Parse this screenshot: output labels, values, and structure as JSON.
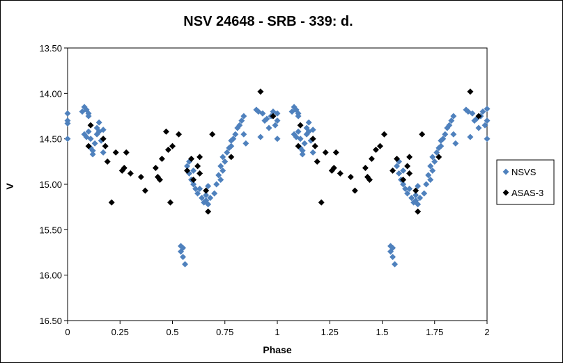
{
  "chart_data": {
    "type": "scatter",
    "title": "NSV 24648 - SRB - 339: d.",
    "xlabel": "Phase",
    "ylabel": "V",
    "xlim": [
      0,
      2
    ],
    "ylim": [
      13.5,
      16.5
    ],
    "y_reversed": true,
    "x_ticks": [
      "0",
      "0.25",
      "0.5",
      "0.75",
      "1",
      "1.25",
      "1.5",
      "1.75",
      "2"
    ],
    "x_tick_values": [
      0,
      0.25,
      0.5,
      0.75,
      1,
      1.25,
      1.5,
      1.75,
      2
    ],
    "y_ticks": [
      "13.50",
      "14.00",
      "14.50",
      "15.00",
      "15.50",
      "16.00",
      "16.50"
    ],
    "y_tick_values": [
      13.5,
      14.0,
      14.5,
      15.0,
      15.5,
      16.0,
      16.5
    ],
    "grid": false,
    "legend_position": "right",
    "series": [
      {
        "name": "NSVS",
        "color": "#4F81BD",
        "marker": "diamond",
        "points": [
          [
            0.0,
            14.22
          ],
          [
            0.0,
            14.33
          ],
          [
            0.0,
            14.3
          ],
          [
            0.0,
            14.5
          ],
          [
            0.07,
            14.2
          ],
          [
            0.08,
            14.15
          ],
          [
            0.09,
            14.18
          ],
          [
            0.1,
            14.22
          ],
          [
            0.1,
            14.25
          ],
          [
            0.08,
            14.45
          ],
          [
            0.09,
            14.48
          ],
          [
            0.1,
            14.42
          ],
          [
            0.11,
            14.5
          ],
          [
            0.11,
            14.6
          ],
          [
            0.12,
            14.63
          ],
          [
            0.12,
            14.67
          ],
          [
            0.13,
            14.55
          ],
          [
            0.14,
            14.45
          ],
          [
            0.14,
            14.38
          ],
          [
            0.15,
            14.32
          ],
          [
            0.15,
            14.42
          ],
          [
            0.16,
            14.52
          ],
          [
            0.17,
            14.4
          ],
          [
            0.17,
            14.65
          ],
          [
            0.54,
            15.68
          ],
          [
            0.54,
            15.74
          ],
          [
            0.55,
            15.8
          ],
          [
            0.56,
            15.88
          ],
          [
            0.55,
            15.7
          ],
          [
            0.57,
            14.8
          ],
          [
            0.58,
            14.75
          ],
          [
            0.58,
            14.88
          ],
          [
            0.59,
            14.95
          ],
          [
            0.6,
            15.0
          ],
          [
            0.6,
            14.85
          ],
          [
            0.61,
            15.05
          ],
          [
            0.62,
            15.1
          ],
          [
            0.63,
            15.05
          ],
          [
            0.64,
            15.15
          ],
          [
            0.65,
            15.2
          ],
          [
            0.66,
            15.12
          ],
          [
            0.66,
            15.18
          ],
          [
            0.67,
            15.02
          ],
          [
            0.67,
            15.22
          ],
          [
            0.68,
            15.15
          ],
          [
            0.7,
            15.1
          ],
          [
            0.71,
            15.0
          ],
          [
            0.72,
            14.9
          ],
          [
            0.73,
            14.8
          ],
          [
            0.73,
            14.95
          ],
          [
            0.74,
            14.7
          ],
          [
            0.74,
            14.85
          ],
          [
            0.75,
            14.75
          ],
          [
            0.76,
            14.65
          ],
          [
            0.77,
            14.6
          ],
          [
            0.78,
            14.58
          ],
          [
            0.78,
            14.52
          ],
          [
            0.79,
            14.5
          ],
          [
            0.8,
            14.45
          ],
          [
            0.81,
            14.38
          ],
          [
            0.82,
            14.35
          ],
          [
            0.83,
            14.3
          ],
          [
            0.84,
            14.25
          ],
          [
            0.84,
            14.45
          ],
          [
            0.85,
            14.55
          ],
          [
            0.9,
            14.18
          ],
          [
            0.91,
            14.2
          ],
          [
            0.92,
            14.48
          ],
          [
            0.93,
            14.22
          ],
          [
            0.94,
            14.3
          ],
          [
            0.95,
            14.28
          ],
          [
            0.96,
            14.38
          ],
          [
            0.97,
            14.25
          ],
          [
            0.98,
            14.2
          ],
          [
            0.99,
            14.35
          ],
          [
            1.0,
            14.3
          ],
          [
            1.0,
            14.5
          ],
          [
            1.0,
            14.22
          ],
          [
            1.07,
            14.2
          ],
          [
            1.08,
            14.15
          ],
          [
            1.09,
            14.18
          ],
          [
            1.1,
            14.22
          ],
          [
            1.1,
            14.25
          ],
          [
            1.08,
            14.45
          ],
          [
            1.09,
            14.48
          ],
          [
            1.1,
            14.42
          ],
          [
            1.11,
            14.5
          ],
          [
            1.11,
            14.6
          ],
          [
            1.12,
            14.63
          ],
          [
            1.12,
            14.67
          ],
          [
            1.13,
            14.55
          ],
          [
            1.14,
            14.45
          ],
          [
            1.14,
            14.38
          ],
          [
            1.15,
            14.32
          ],
          [
            1.15,
            14.42
          ],
          [
            1.16,
            14.52
          ],
          [
            1.17,
            14.4
          ],
          [
            1.17,
            14.65
          ],
          [
            1.54,
            15.68
          ],
          [
            1.54,
            15.74
          ],
          [
            1.55,
            15.8
          ],
          [
            1.56,
            15.88
          ],
          [
            1.55,
            15.7
          ],
          [
            1.57,
            14.8
          ],
          [
            1.58,
            14.75
          ],
          [
            1.58,
            14.88
          ],
          [
            1.59,
            14.95
          ],
          [
            1.6,
            15.0
          ],
          [
            1.6,
            14.85
          ],
          [
            1.61,
            15.05
          ],
          [
            1.62,
            15.1
          ],
          [
            1.63,
            15.05
          ],
          [
            1.64,
            15.15
          ],
          [
            1.65,
            15.2
          ],
          [
            1.66,
            15.12
          ],
          [
            1.66,
            15.18
          ],
          [
            1.67,
            15.02
          ],
          [
            1.67,
            15.22
          ],
          [
            1.68,
            15.15
          ],
          [
            1.7,
            15.1
          ],
          [
            1.71,
            15.0
          ],
          [
            1.72,
            14.9
          ],
          [
            1.73,
            14.8
          ],
          [
            1.73,
            14.95
          ],
          [
            1.74,
            14.7
          ],
          [
            1.74,
            14.85
          ],
          [
            1.75,
            14.75
          ],
          [
            1.76,
            14.65
          ],
          [
            1.77,
            14.6
          ],
          [
            1.78,
            14.58
          ],
          [
            1.78,
            14.52
          ],
          [
            1.79,
            14.5
          ],
          [
            1.8,
            14.45
          ],
          [
            1.81,
            14.38
          ],
          [
            1.82,
            14.35
          ],
          [
            1.83,
            14.3
          ],
          [
            1.84,
            14.25
          ],
          [
            1.84,
            14.45
          ],
          [
            1.85,
            14.55
          ],
          [
            1.9,
            14.18
          ],
          [
            1.91,
            14.2
          ],
          [
            1.92,
            14.48
          ],
          [
            1.93,
            14.22
          ],
          [
            1.94,
            14.3
          ],
          [
            1.95,
            14.28
          ],
          [
            1.96,
            14.38
          ],
          [
            1.97,
            14.25
          ],
          [
            1.98,
            14.2
          ],
          [
            1.99,
            14.35
          ],
          [
            2.0,
            14.3
          ],
          [
            2.0,
            14.5
          ],
          [
            2.0,
            14.17
          ]
        ]
      },
      {
        "name": "ASAS-3",
        "color": "#000000",
        "marker": "diamond",
        "points": [
          [
            0.1,
            14.58
          ],
          [
            0.11,
            14.35
          ],
          [
            0.17,
            14.5
          ],
          [
            0.18,
            14.58
          ],
          [
            0.19,
            14.75
          ],
          [
            0.21,
            15.2
          ],
          [
            0.23,
            14.65
          ],
          [
            0.26,
            14.85
          ],
          [
            0.27,
            14.82
          ],
          [
            0.28,
            14.65
          ],
          [
            0.3,
            14.88
          ],
          [
            0.35,
            14.92
          ],
          [
            0.37,
            15.07
          ],
          [
            0.42,
            14.82
          ],
          [
            0.43,
            14.92
          ],
          [
            0.44,
            14.95
          ],
          [
            0.45,
            14.72
          ],
          [
            0.47,
            14.42
          ],
          [
            0.48,
            14.62
          ],
          [
            0.49,
            15.2
          ],
          [
            0.5,
            14.58
          ],
          [
            0.53,
            14.45
          ],
          [
            0.57,
            14.85
          ],
          [
            0.59,
            14.72
          ],
          [
            0.6,
            14.95
          ],
          [
            0.62,
            14.8
          ],
          [
            0.63,
            14.88
          ],
          [
            0.63,
            14.7
          ],
          [
            0.66,
            15.07
          ],
          [
            0.67,
            15.3
          ],
          [
            0.69,
            14.45
          ],
          [
            0.78,
            14.7
          ],
          [
            0.92,
            13.98
          ],
          [
            0.98,
            14.25
          ],
          [
            1.1,
            14.58
          ],
          [
            1.11,
            14.35
          ],
          [
            1.17,
            14.5
          ],
          [
            1.18,
            14.58
          ],
          [
            1.19,
            14.75
          ],
          [
            1.21,
            15.2
          ],
          [
            1.23,
            14.65
          ],
          [
            1.26,
            14.85
          ],
          [
            1.27,
            14.82
          ],
          [
            1.28,
            14.65
          ],
          [
            1.3,
            14.88
          ],
          [
            1.35,
            14.92
          ],
          [
            1.37,
            15.07
          ],
          [
            1.42,
            14.82
          ],
          [
            1.43,
            14.92
          ],
          [
            1.44,
            14.95
          ],
          [
            1.45,
            14.72
          ],
          [
            1.47,
            14.62
          ],
          [
            1.49,
            14.58
          ],
          [
            1.51,
            14.45
          ],
          [
            1.55,
            14.85
          ],
          [
            1.57,
            14.72
          ],
          [
            1.6,
            14.95
          ],
          [
            1.62,
            14.8
          ],
          [
            1.63,
            14.88
          ],
          [
            1.63,
            14.7
          ],
          [
            1.66,
            15.07
          ],
          [
            1.67,
            15.3
          ],
          [
            1.69,
            14.45
          ],
          [
            1.77,
            14.7
          ],
          [
            1.92,
            13.98
          ],
          [
            1.96,
            14.25
          ]
        ]
      }
    ]
  }
}
